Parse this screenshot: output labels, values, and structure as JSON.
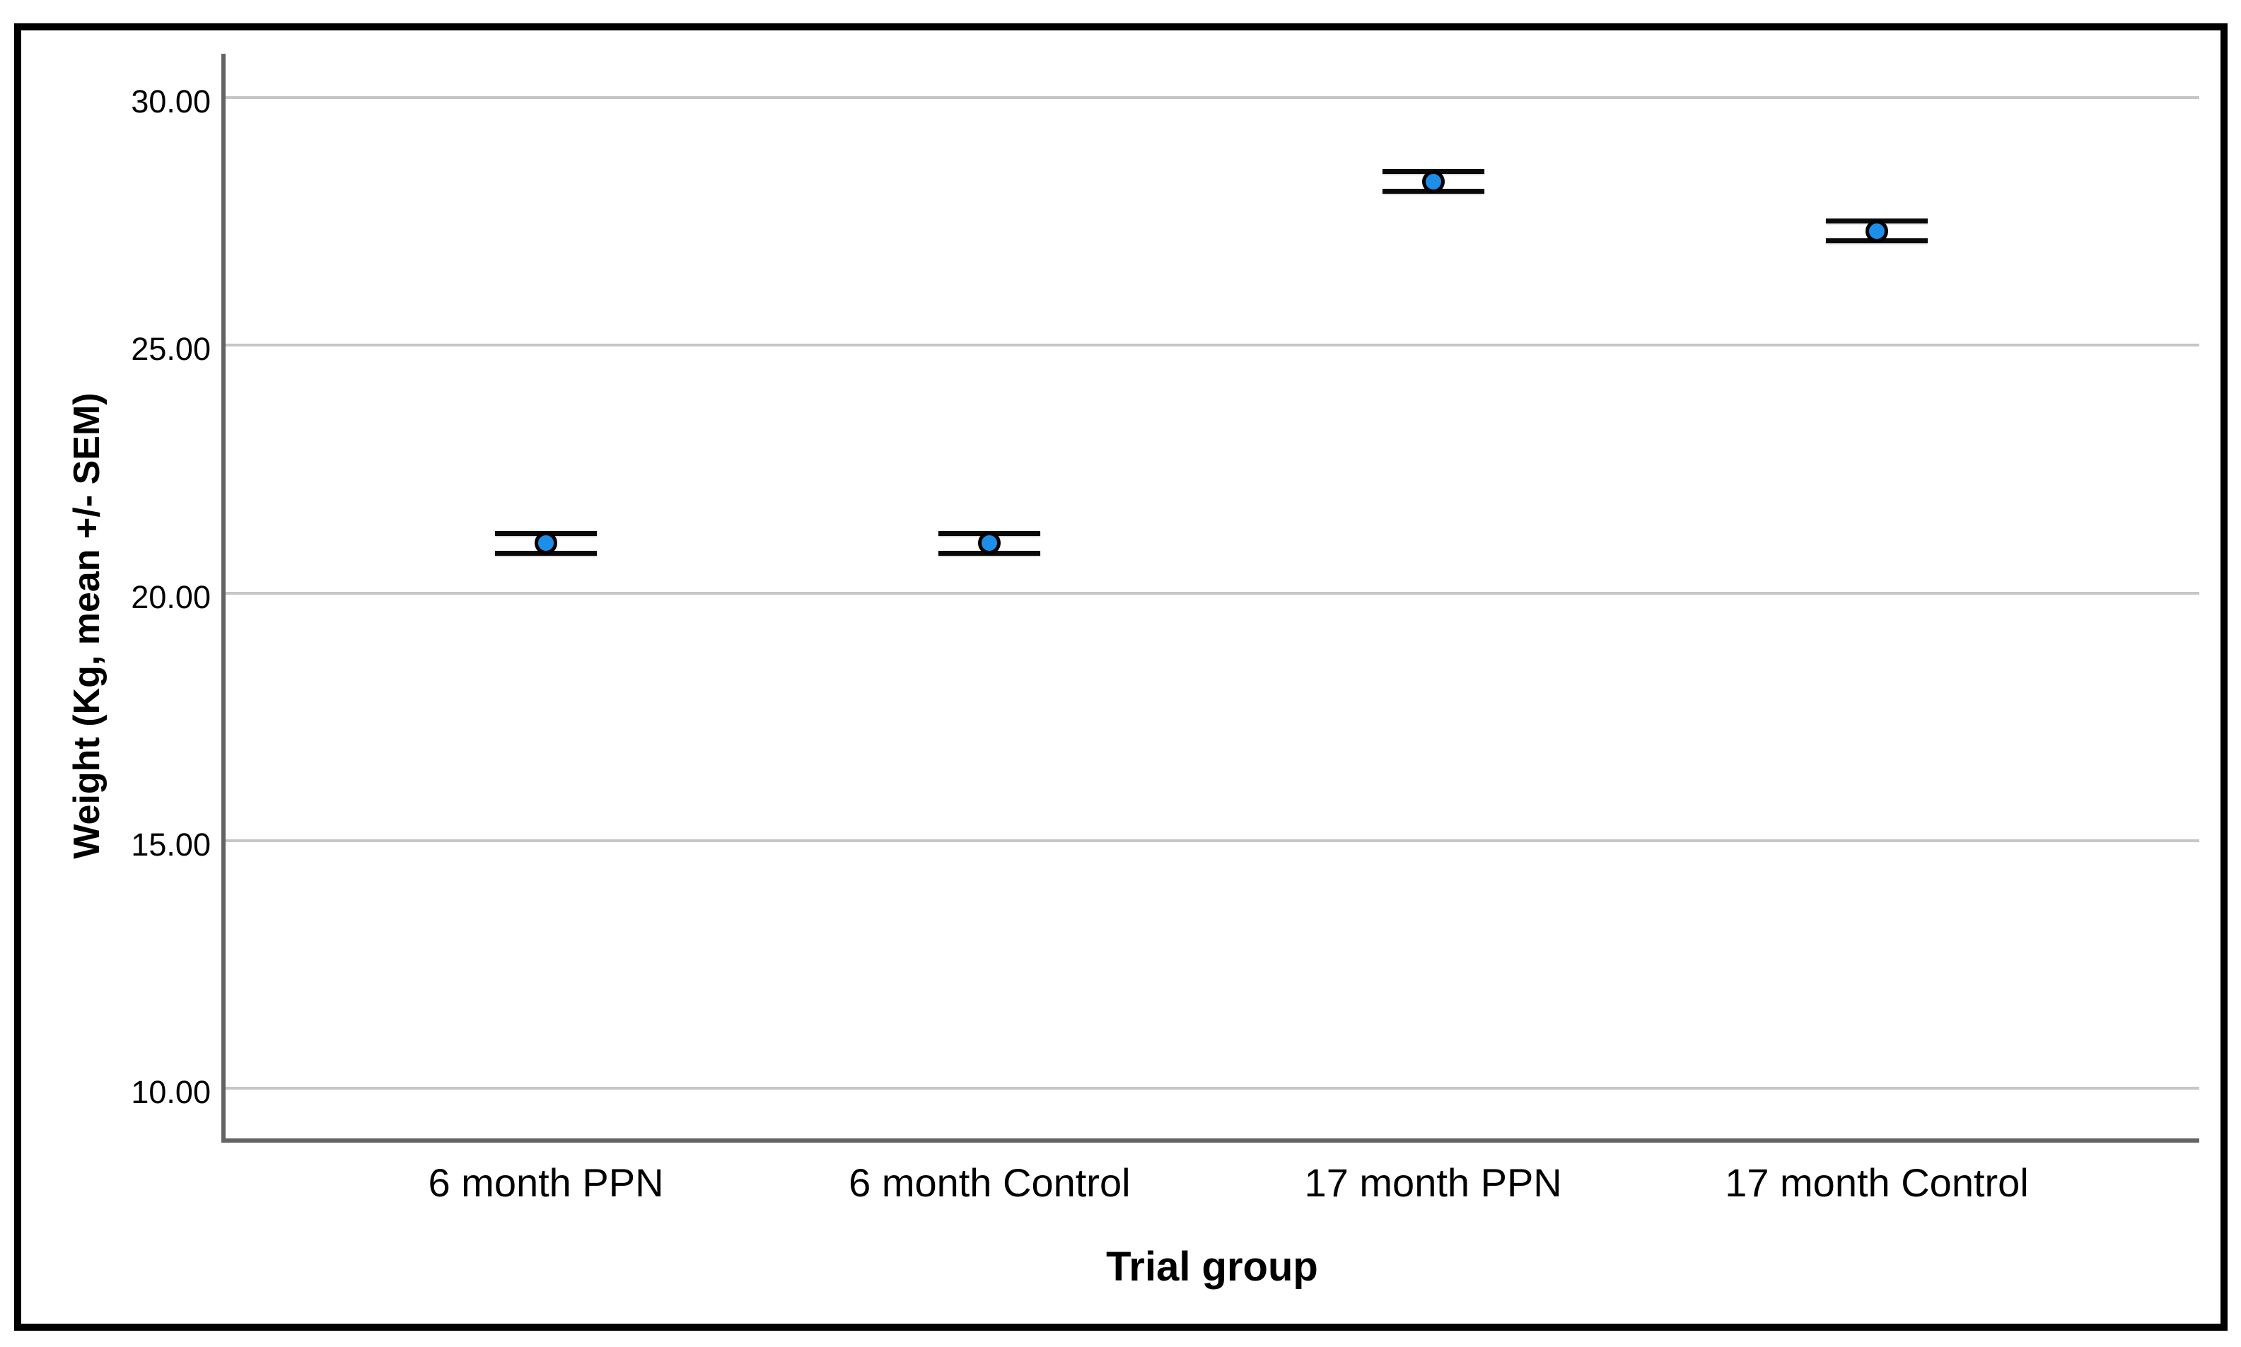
{
  "chart_data": {
    "type": "errorbar",
    "title": "",
    "xlabel": "Trial group",
    "ylabel": "Weight (Kg, mean +/- SEM)",
    "categories": [
      "6 month PPN",
      "6 month Control",
      "17 month PPN",
      "17 month Control"
    ],
    "means": [
      21.0,
      21.0,
      28.3,
      27.3
    ],
    "sem": [
      0.2,
      0.2,
      0.2,
      0.2
    ],
    "ylim": [
      8.95,
      30.88
    ],
    "yticks": [
      30,
      25,
      20,
      15,
      10
    ],
    "ytick_labels": [
      "30.00",
      "25.00",
      "20.00",
      "15.00",
      "10.00"
    ],
    "grid": "horizontal-only",
    "legend": "none",
    "marker_shape": "circle",
    "colors": {
      "marker_fill": "#1e8fe8",
      "marker_outline": "#000000",
      "errorbar": "#0a0a0a",
      "gridline": "#c6c6c6",
      "axis_line": "#646464",
      "frame_border": "#000000",
      "background": "#ffffff",
      "text": "#000000"
    }
  }
}
